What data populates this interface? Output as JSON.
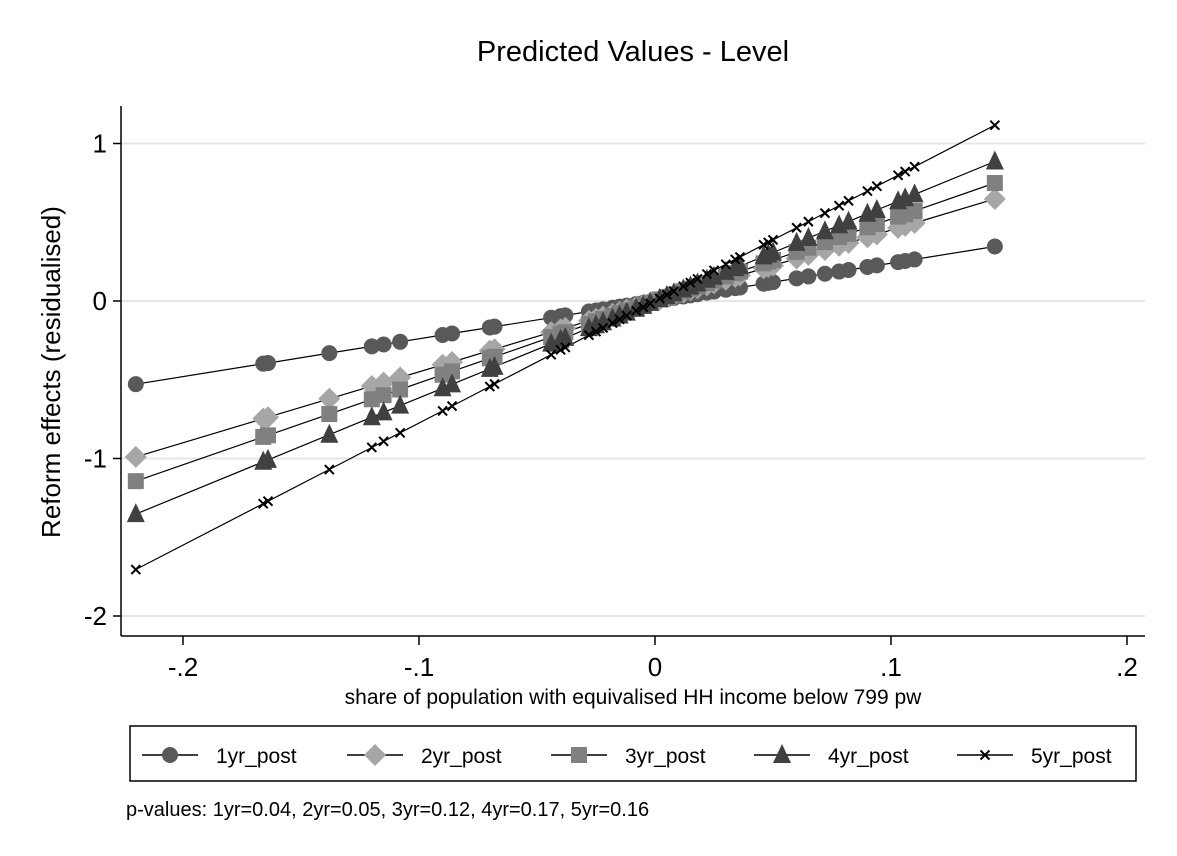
{
  "chart_data": {
    "type": "line",
    "title": "Predicted Values - Level",
    "xlabel": "share of population with equivalised HH income below 799 pw",
    "ylabel": "Reform effects (residualised)",
    "xlim": [
      -0.228,
      0.21
    ],
    "ylim": [
      -2.1,
      1.25
    ],
    "xticks": [
      {
        "value": -0.2,
        "label": "-.2"
      },
      {
        "value": -0.1,
        "label": "-.1"
      },
      {
        "value": 0,
        "label": "0"
      },
      {
        "value": 0.1,
        "label": ".1"
      },
      {
        "value": 0.2,
        "label": ".2"
      }
    ],
    "yticks": [
      {
        "value": 1,
        "label": "1"
      },
      {
        "value": 0,
        "label": "0"
      },
      {
        "value": -1,
        "label": "-1"
      },
      {
        "value": -2,
        "label": "-2"
      }
    ],
    "grid": "horizontal",
    "legend_position": "bottom",
    "x": [
      -0.22,
      -0.166,
      -0.164,
      -0.138,
      -0.12,
      -0.115,
      -0.108,
      -0.09,
      -0.086,
      -0.07,
      -0.068,
      -0.044,
      -0.04,
      -0.038,
      -0.028,
      -0.025,
      -0.022,
      -0.018,
      -0.015,
      -0.012,
      -0.008,
      -0.005,
      -0.002,
      0.002,
      0.005,
      0.008,
      0.012,
      0.015,
      0.018,
      0.022,
      0.025,
      0.03,
      0.034,
      0.036,
      0.046,
      0.048,
      0.05,
      0.06,
      0.065,
      0.072,
      0.078,
      0.082,
      0.09,
      0.094,
      0.103,
      0.106,
      0.11,
      0.144
    ],
    "series": [
      {
        "name": "1yr_post",
        "marker": "circle",
        "color": "#595959",
        "slope": 2.4,
        "values": [
          -0.528,
          -0.398,
          -0.394,
          -0.331,
          -0.288,
          -0.276,
          -0.259,
          -0.216,
          -0.206,
          -0.168,
          -0.163,
          -0.106,
          -0.096,
          -0.091,
          -0.067,
          -0.06,
          -0.053,
          -0.043,
          -0.036,
          -0.029,
          -0.019,
          -0.012,
          -0.005,
          0.005,
          0.012,
          0.019,
          0.029,
          0.036,
          0.043,
          0.053,
          0.06,
          0.072,
          0.082,
          0.086,
          0.11,
          0.115,
          0.12,
          0.144,
          0.156,
          0.173,
          0.187,
          0.197,
          0.216,
          0.226,
          0.247,
          0.254,
          0.264,
          0.346
        ]
      },
      {
        "name": "2yr_post",
        "marker": "diamond",
        "color": "#a6a6a6",
        "slope": 4.5,
        "values": [
          -0.99,
          -0.747,
          -0.738,
          -0.621,
          -0.54,
          -0.518,
          -0.486,
          -0.405,
          -0.387,
          -0.315,
          -0.306,
          -0.198,
          -0.18,
          -0.171,
          -0.126,
          -0.113,
          -0.099,
          -0.081,
          -0.068,
          -0.054,
          -0.036,
          -0.023,
          -0.009,
          0.009,
          0.023,
          0.036,
          0.054,
          0.068,
          0.081,
          0.099,
          0.113,
          0.135,
          0.153,
          0.162,
          0.207,
          0.216,
          0.225,
          0.27,
          0.293,
          0.324,
          0.351,
          0.369,
          0.405,
          0.423,
          0.464,
          0.477,
          0.495,
          0.648
        ]
      },
      {
        "name": "3yr_post",
        "marker": "square",
        "color": "#808080",
        "slope": 5.2,
        "values": [
          -1.144,
          -0.863,
          -0.853,
          -0.718,
          -0.624,
          -0.598,
          -0.562,
          -0.468,
          -0.447,
          -0.364,
          -0.354,
          -0.229,
          -0.208,
          -0.198,
          -0.146,
          -0.13,
          -0.114,
          -0.094,
          -0.078,
          -0.062,
          -0.042,
          -0.026,
          -0.01,
          0.01,
          0.026,
          0.042,
          0.062,
          0.078,
          0.094,
          0.114,
          0.13,
          0.156,
          0.177,
          0.187,
          0.239,
          0.25,
          0.26,
          0.312,
          0.338,
          0.374,
          0.406,
          0.426,
          0.468,
          0.489,
          0.536,
          0.551,
          0.572,
          0.749
        ]
      },
      {
        "name": "4yr_post",
        "marker": "triangle",
        "color": "#404040",
        "slope": 6.15,
        "values": [
          -1.353,
          -1.021,
          -1.009,
          -0.849,
          -0.738,
          -0.707,
          -0.664,
          -0.554,
          -0.529,
          -0.431,
          -0.418,
          -0.271,
          -0.246,
          -0.234,
          -0.172,
          -0.154,
          -0.135,
          -0.111,
          -0.092,
          -0.074,
          -0.049,
          -0.031,
          -0.012,
          0.012,
          0.031,
          0.049,
          0.074,
          0.092,
          0.111,
          0.135,
          0.154,
          0.185,
          0.209,
          0.221,
          0.283,
          0.295,
          0.308,
          0.369,
          0.4,
          0.443,
          0.48,
          0.504,
          0.554,
          0.578,
          0.633,
          0.652,
          0.677,
          0.886
        ]
      },
      {
        "name": "5yr_post",
        "marker": "x",
        "color": "#000000",
        "slope": 7.75,
        "values": [
          -1.705,
          -1.287,
          -1.271,
          -1.07,
          -0.93,
          -0.891,
          -0.837,
          -0.698,
          -0.667,
          -0.543,
          -0.527,
          -0.341,
          -0.31,
          -0.295,
          -0.217,
          -0.194,
          -0.171,
          -0.14,
          -0.116,
          -0.093,
          -0.062,
          -0.039,
          -0.016,
          0.016,
          0.039,
          0.062,
          0.093,
          0.116,
          0.14,
          0.171,
          0.194,
          0.233,
          0.264,
          0.279,
          0.357,
          0.372,
          0.388,
          0.465,
          0.504,
          0.558,
          0.605,
          0.636,
          0.698,
          0.729,
          0.798,
          0.822,
          0.853,
          1.116
        ]
      }
    ]
  },
  "note": "p-values: 1yr=0.04,  2yr=0.05,  3yr=0.12,  4yr=0.17,  5yr=0.16",
  "colors": {
    "grid": "#e6e6e6",
    "axis": "#000000",
    "line": "#000000"
  }
}
